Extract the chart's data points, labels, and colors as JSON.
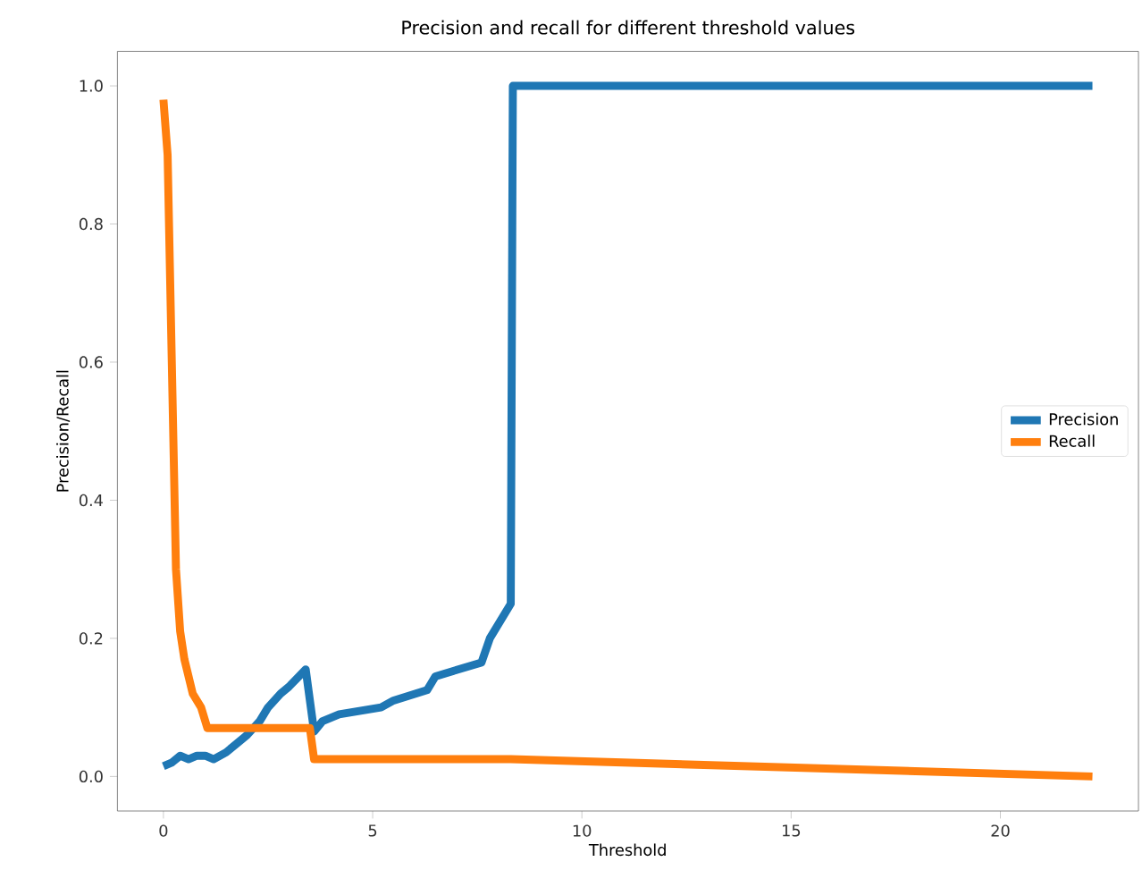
{
  "chart_data": {
    "type": "line",
    "title": "Precision and recall for different threshold values",
    "xlabel": "Threshold",
    "ylabel": "Precision/Recall",
    "xlim": [
      -1.1,
      23.3
    ],
    "ylim": [
      -0.05,
      1.05
    ],
    "xticks": [
      0,
      5,
      10,
      15,
      20
    ],
    "yticks": [
      {
        "value": 0,
        "label": "0.0"
      },
      {
        "value": 0.2,
        "label": "0.2"
      },
      {
        "value": 0.4,
        "label": "0.4"
      },
      {
        "value": 0.6,
        "label": "0.6"
      },
      {
        "value": 0.8,
        "label": "0.8"
      },
      {
        "value": 1,
        "label": "1.0"
      }
    ],
    "legend": "right",
    "grid": false,
    "marker": "none",
    "line_style": "solid",
    "series": [
      {
        "name": "Precision",
        "color": "#1f77b4",
        "x": [
          0,
          0.2,
          0.4,
          0.6,
          0.8,
          1.0,
          1.2,
          1.5,
          1.8,
          2.0,
          2.3,
          2.5,
          2.8,
          3.0,
          3.4,
          3.6,
          3.8,
          4.2,
          5.2,
          5.5,
          6.3,
          6.5,
          7.6,
          7.8,
          8.3,
          8.35,
          22.2
        ],
        "values": [
          0.015,
          0.02,
          0.03,
          0.025,
          0.03,
          0.03,
          0.025,
          0.035,
          0.05,
          0.06,
          0.08,
          0.1,
          0.12,
          0.13,
          0.155,
          0.065,
          0.08,
          0.09,
          0.1,
          0.11,
          0.125,
          0.145,
          0.165,
          0.2,
          0.25,
          1.0,
          1.0
        ]
      },
      {
        "name": "Recall",
        "color": "#ff7f0e",
        "x": [
          0,
          0.1,
          0.2,
          0.3,
          0.4,
          0.5,
          0.7,
          0.9,
          1.05,
          3.5,
          3.6,
          8.3,
          22.2
        ],
        "values": [
          0.98,
          0.9,
          0.6,
          0.3,
          0.21,
          0.17,
          0.12,
          0.1,
          0.07,
          0.07,
          0.025,
          0.025,
          0.0
        ]
      }
    ]
  }
}
